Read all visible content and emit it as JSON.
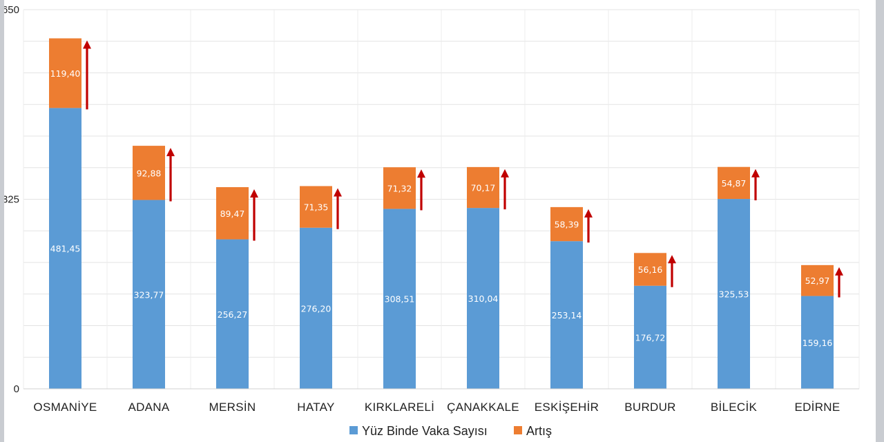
{
  "chart_data": {
    "type": "bar",
    "stacked": true,
    "categories": [
      "OSMANİYE",
      "ADANA",
      "MERSİN",
      "HATAY",
      "KIRKLARELİ",
      "ÇANAKKALE",
      "ESKİŞEHİR",
      "BURDUR",
      "BİLECİK",
      "EDİRNE"
    ],
    "series": [
      {
        "name": "Yüz Binde Vaka Sayısı",
        "color": "#5b9bd5",
        "values": [
          481.45,
          323.77,
          256.27,
          276.2,
          308.51,
          310.04,
          253.14,
          176.72,
          325.53,
          159.16
        ],
        "labels": [
          "481,45",
          "323,77",
          "256,27",
          "276,20",
          "308,51",
          "310,04",
          "253,14",
          "176,72",
          "325,53",
          "159,16"
        ]
      },
      {
        "name": "Artış",
        "color": "#ed7d31",
        "values": [
          119.4,
          92.88,
          89.47,
          71.35,
          71.32,
          70.17,
          58.39,
          56.16,
          54.87,
          52.97
        ],
        "labels": [
          "119,40",
          "92,88",
          "89,47",
          "71,35",
          "71,32",
          "70,17",
          "58,39",
          "56,16",
          "54,87",
          "52,97"
        ]
      }
    ],
    "yticks": [
      {
        "value": 0,
        "label": "0"
      },
      {
        "value": 325,
        "label": "325"
      },
      {
        "value": 650,
        "label": "650"
      }
    ],
    "ylim": [
      0,
      650
    ],
    "grid": true,
    "legend_position": "bottom",
    "arrow_color": "#c00000"
  }
}
